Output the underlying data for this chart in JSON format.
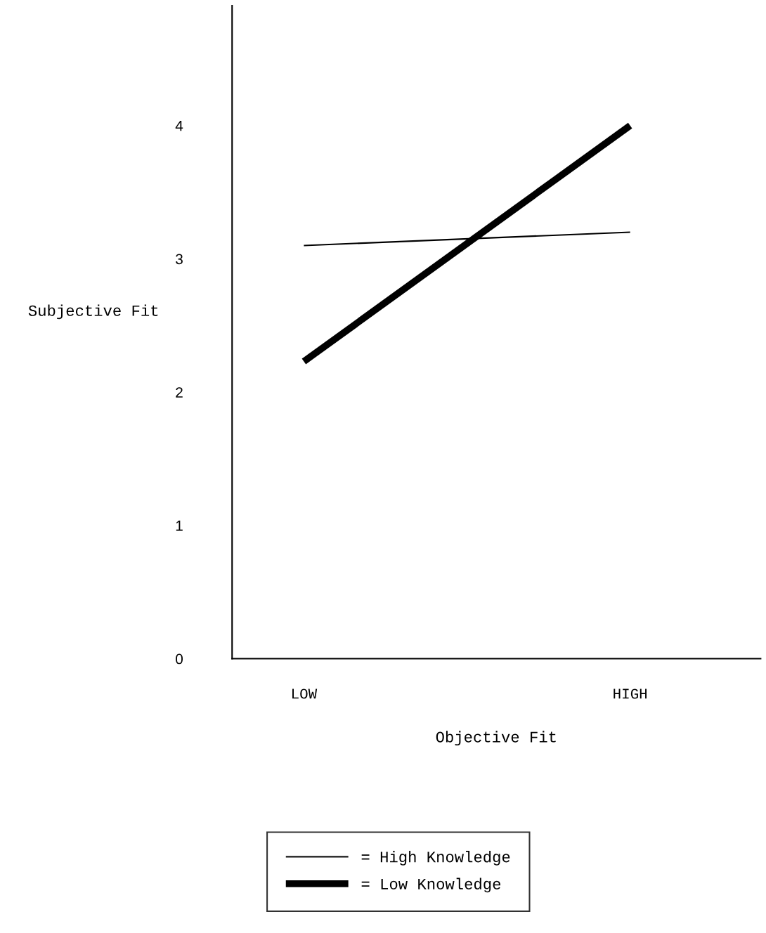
{
  "chart_data": {
    "type": "line",
    "xlabel": "Objective Fit",
    "ylabel": "Subjective Fit",
    "categories": [
      "LOW",
      "HIGH"
    ],
    "series": [
      {
        "name": "= High Knowledge",
        "color": "#000000",
        "values": [
          3.1,
          3.2
        ]
      },
      {
        "name": "= Low Knowledge",
        "color": "#000000",
        "values": [
          2.23,
          4.0
        ]
      }
    ],
    "ylim": [
      0,
      4.9
    ],
    "yticks": [
      0,
      1,
      2,
      3,
      4
    ],
    "grid": false,
    "legend": "bottom",
    "marker": "none",
    "line_style": "solid"
  }
}
